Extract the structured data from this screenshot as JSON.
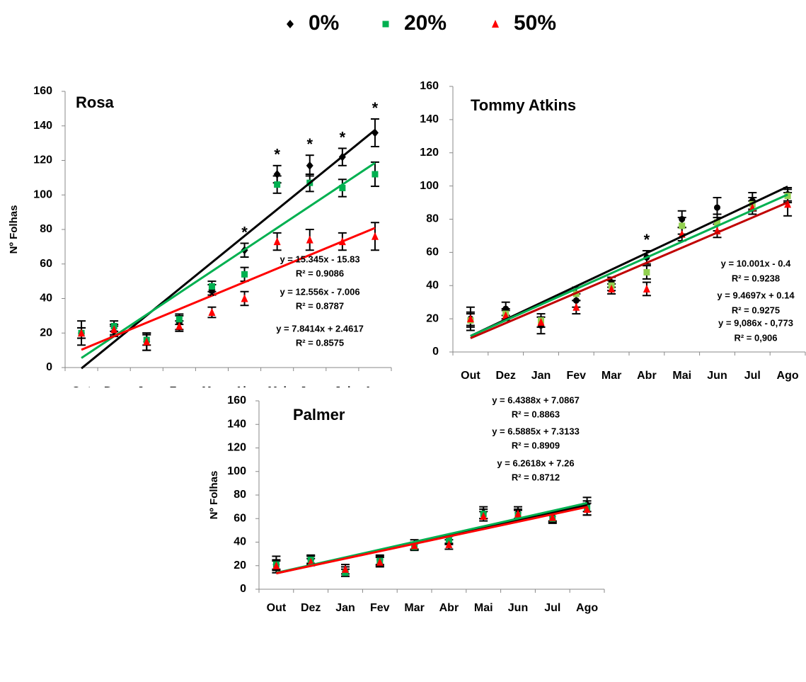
{
  "legend": {
    "position": "top"
  },
  "chart_data": [
    {
      "type": "scatter",
      "title": "Rosa",
      "y_label": "Nº Folhas",
      "categories": [
        "Out",
        "Dez",
        "Jan",
        "Fev",
        "Mar",
        "Abr",
        "Mai",
        "Jun",
        "Jul",
        "Ago"
      ],
      "ylim": [
        0,
        160
      ],
      "yticks": [
        0,
        20,
        40,
        60,
        80,
        100,
        120,
        140,
        160
      ],
      "series": [
        {
          "name": "0%",
          "color": "#000000",
          "marker": "diamond",
          "values": [
            20,
            21,
            15,
            26,
            45,
            68,
            112,
            117,
            122,
            136
          ],
          "errors": [
            7,
            3,
            5,
            4,
            3,
            4,
            5,
            6,
            5,
            8
          ]
        },
        {
          "name": "20%",
          "color": "#00b050",
          "marker": "square",
          "values": [
            20,
            24,
            16,
            28,
            47,
            54,
            106,
            107,
            104,
            112
          ],
          "errors": [
            3,
            3,
            3,
            3,
            3,
            4,
            5,
            5,
            5,
            7
          ]
        },
        {
          "name": "50%",
          "color": "#ff0000",
          "marker": "triangle",
          "values": [
            20,
            22,
            15,
            24,
            32,
            40,
            73,
            74,
            73,
            76
          ],
          "errors": [
            3,
            3,
            5,
            3,
            3,
            4,
            5,
            6,
            5,
            8
          ]
        }
      ],
      "trendlines": [
        {
          "color": "#000000",
          "slope": 15.345,
          "intercept": -15.83,
          "equation": "y = 15.345x - 15.83",
          "r2": "R² = 0.9086"
        },
        {
          "color": "#00b050",
          "slope": 12.556,
          "intercept": -7.006,
          "equation": "y = 12.556x - 7.006",
          "r2": "R² = 0.8787"
        },
        {
          "color": "#ff0000",
          "slope": 7.8414,
          "intercept": 2.4617,
          "equation": "y = 7.8414x + 2.4617",
          "r2": "R² = 0.8575"
        }
      ],
      "annotations": [
        {
          "text": "*",
          "category": "Mar",
          "series": 2
        },
        {
          "text": "*",
          "category": "Abr",
          "series": 0
        },
        {
          "text": "*",
          "category": "Mai",
          "series": 0
        },
        {
          "text": "*",
          "category": "Jun",
          "series": 0
        },
        {
          "text": "*",
          "category": "Jul",
          "series": 0
        },
        {
          "text": "*",
          "category": "Ago",
          "series": 0
        }
      ]
    },
    {
      "type": "scatter",
      "title": "Tommy Atkins",
      "categories": [
        "Out",
        "Dez",
        "Jan",
        "Fev",
        "Mar",
        "Abr",
        "Mai",
        "Jun",
        "Jul",
        "Ago"
      ],
      "ylim": [
        0,
        160
      ],
      "yticks": [
        0,
        20,
        40,
        60,
        80,
        100,
        120,
        140,
        160
      ],
      "series": [
        {
          "color": "#000000",
          "marker": "circle",
          "values": [
            20,
            26,
            16,
            31,
            42,
            57,
            80,
            87,
            91,
            95
          ],
          "errors": [
            7,
            4,
            5,
            4,
            3,
            4,
            5,
            6,
            5,
            4
          ]
        },
        {
          "color": "#92d050",
          "marker": "square",
          "values": [
            19,
            23,
            19,
            35,
            40,
            48,
            76,
            78,
            89,
            94
          ],
          "errors": [
            4,
            3,
            4,
            4,
            3,
            4,
            5,
            5,
            4,
            4
          ]
        },
        {
          "color": "#ff0000",
          "marker": "triangle",
          "values": [
            20,
            22,
            18,
            27,
            38,
            38,
            71,
            73,
            87,
            89
          ],
          "errors": [
            4,
            3,
            3,
            4,
            3,
            4,
            4,
            4,
            4,
            7
          ]
        }
      ],
      "trendlines": [
        {
          "color": "#000000",
          "slope": 10.001,
          "intercept": -0.4,
          "equation": "y = 10.001x - 0.4",
          "r2": "R² = 0.9238"
        },
        {
          "color": "#00b050",
          "slope": 9.4697,
          "intercept": 0.14,
          "equation": "y = 9.4697x + 0.14",
          "r2": "R² = 0.9275"
        },
        {
          "color": "#c00000",
          "slope": 9.086,
          "intercept": -0.773,
          "equation": "y = 9,086x - 0,773",
          "r2": "R² = 0,906"
        }
      ],
      "annotations": [
        {
          "text": "*",
          "category": "Abr",
          "series": 0
        }
      ]
    },
    {
      "type": "scatter",
      "title": "Palmer",
      "y_label": "Nº Folhas",
      "categories": [
        "Out",
        "Dez",
        "Jan",
        "Fev",
        "Mar",
        "Abr",
        "Mai",
        "Jun",
        "Jul",
        "Ago"
      ],
      "ylim": [
        0,
        160
      ],
      "yticks": [
        0,
        20,
        40,
        60,
        80,
        100,
        120,
        140,
        160
      ],
      "series": [
        {
          "color": "#000000",
          "marker": "diamond",
          "values": [
            21,
            25,
            15,
            25,
            38,
            42,
            65,
            65,
            62,
            72
          ],
          "errors": [
            7,
            4,
            4,
            4,
            4,
            4,
            5,
            5,
            4,
            6
          ]
        },
        {
          "color": "#00b050",
          "marker": "square",
          "values": [
            21,
            25,
            14,
            24,
            36,
            42,
            64,
            63,
            60,
            69
          ],
          "errors": [
            4,
            3,
            3,
            4,
            3,
            3,
            4,
            4,
            4,
            6
          ]
        },
        {
          "color": "#ff0000",
          "marker": "triangle",
          "values": [
            20,
            23,
            17,
            23,
            37,
            38,
            62,
            64,
            61,
            68
          ],
          "errors": [
            4,
            3,
            4,
            4,
            3,
            4,
            4,
            4,
            4,
            5
          ]
        }
      ],
      "trendlines": [
        {
          "color": "#000000",
          "slope": 6.4388,
          "intercept": 7.0867,
          "equation": "y = 6.4388x + 7.0867",
          "r2": "R² = 0.8863"
        },
        {
          "color": "#00b050",
          "slope": 6.5885,
          "intercept": 7.3133,
          "equation": "y = 6.5885x + 7.3133",
          "r2": "R² = 0.8909"
        },
        {
          "color": "#ff0000",
          "slope": 6.2618,
          "intercept": 7.26,
          "equation": "y = 6.2618x + 7.26",
          "r2": "R² = 0.8712"
        }
      ],
      "annotations": []
    }
  ]
}
